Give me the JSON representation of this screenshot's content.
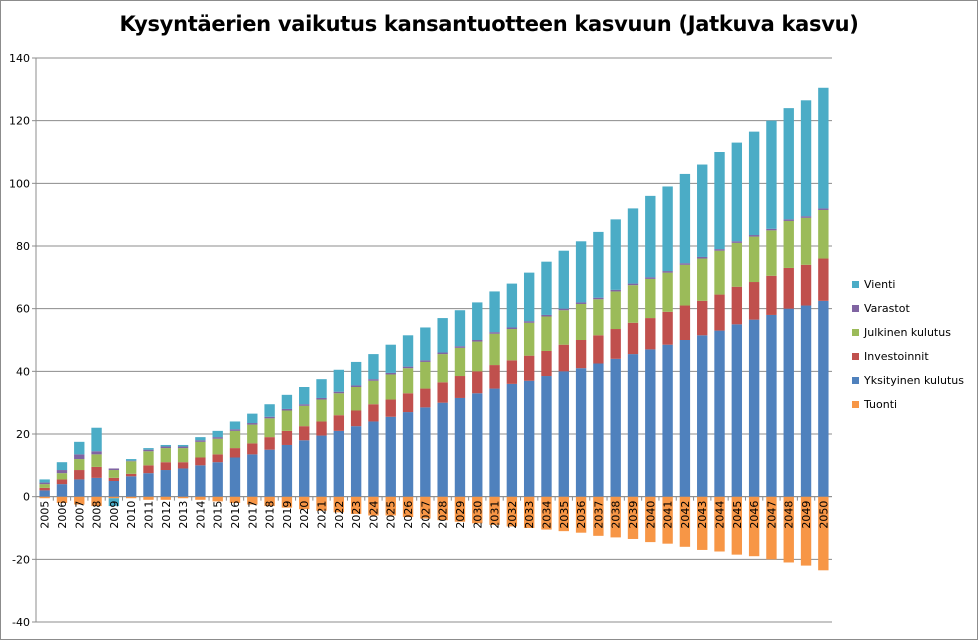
{
  "chart_data": {
    "type": "bar",
    "stacked": true,
    "title": "Kysyntäerien vaikutus kansantuotteen kasvuun (Jatkuva kasvu)",
    "xlabel": "",
    "ylabel": "",
    "ylim": [
      -40,
      140
    ],
    "yticks": [
      -40,
      -20,
      0,
      20,
      40,
      60,
      80,
      100,
      120,
      140
    ],
    "grid": true,
    "legend_position": "right",
    "categories": [
      "2005",
      "2006",
      "2007",
      "2008",
      "2009",
      "2010",
      "2011",
      "2012",
      "2013",
      "2014",
      "2015",
      "2016",
      "2017",
      "2018",
      "2019",
      "2020",
      "2021",
      "2022",
      "2023",
      "2024",
      "2025",
      "2026",
      "2027",
      "2028",
      "2029",
      "2030",
      "2031",
      "2032",
      "2033",
      "2034",
      "2035",
      "2036",
      "2037",
      "2038",
      "2039",
      "2040",
      "2041",
      "2042",
      "2043",
      "2044",
      "2045",
      "2046",
      "2047",
      "2048",
      "2049",
      "2050"
    ],
    "series": [
      {
        "name": "Tuonti",
        "color": "#f79646",
        "values": [
          -0.5,
          -2,
          -2.5,
          -3,
          -0.5,
          -0.5,
          -1,
          -1,
          -0.5,
          -1,
          -1.5,
          -2,
          -2.5,
          -3,
          -3.5,
          -4,
          -4.5,
          -5,
          -5.5,
          -6,
          -6,
          -6.5,
          -7,
          -7.5,
          -8,
          -8.5,
          -9,
          -9.5,
          -10,
          -10.5,
          -11,
          -11.5,
          -12.5,
          -13,
          -13.5,
          -14.5,
          -15,
          -16,
          -17,
          -17.5,
          -18.5,
          -19,
          -20,
          -21,
          -22,
          -23.5
        ]
      },
      {
        "name": "Yksityinen kulutus",
        "color": "#4f81bd",
        "values": [
          2,
          4,
          5.5,
          6,
          5,
          6.5,
          7.5,
          8.5,
          9,
          10,
          11,
          12.5,
          13.5,
          15,
          16.5,
          18,
          19.5,
          21,
          22.5,
          24,
          25.5,
          27,
          28.5,
          30,
          31.5,
          33,
          34.5,
          36,
          37,
          38.5,
          40,
          41,
          42.5,
          44,
          45.5,
          47,
          48.5,
          50,
          51.5,
          53,
          55,
          56.5,
          58,
          60,
          61,
          62.5
        ]
      },
      {
        "name": "Investoinnit",
        "color": "#c0504d",
        "values": [
          0.8,
          1.5,
          3,
          3.5,
          1,
          0.8,
          2.5,
          2.5,
          2,
          2.5,
          2.5,
          3,
          3.5,
          4,
          4.5,
          4.5,
          4.5,
          5,
          5,
          5.5,
          5.5,
          6,
          6,
          6.5,
          7,
          7,
          7.5,
          7.5,
          8,
          8,
          8.5,
          9,
          9,
          9.5,
          10,
          10,
          10.5,
          11,
          11,
          11.5,
          12,
          12,
          12.5,
          13,
          13,
          13.5
        ]
      },
      {
        "name": "Julkinen kulutus",
        "color": "#9bbb59",
        "values": [
          1.2,
          2,
          3.5,
          4,
          2.5,
          4,
          4.5,
          4.5,
          4.5,
          5,
          5,
          5.5,
          6,
          6,
          6.5,
          6.5,
          7,
          7,
          7.5,
          7.5,
          8,
          8,
          8.5,
          9,
          9,
          9.5,
          10,
          10,
          10.5,
          11,
          11,
          11.5,
          11.5,
          12,
          12,
          12.5,
          12.5,
          13,
          13.5,
          14,
          14,
          14.5,
          14.5,
          15,
          15,
          15.5
        ]
      },
      {
        "name": "Varastot",
        "color": "#8064a2",
        "values": [
          0.5,
          1,
          1.5,
          1,
          0.5,
          0.2,
          0.5,
          0.5,
          0.5,
          0.5,
          0.5,
          0.5,
          0.5,
          0.5,
          0.5,
          0.5,
          0.5,
          0.5,
          0.5,
          0.5,
          0.5,
          0.5,
          0.5,
          0.5,
          0.5,
          0.5,
          0.5,
          0.5,
          0.5,
          0.5,
          0.5,
          0.5,
          0.5,
          0.5,
          0.5,
          0.5,
          0.5,
          0.5,
          0.5,
          0.5,
          0.5,
          0.5,
          0.5,
          0.5,
          0.5,
          0.5
        ]
      },
      {
        "name": "Vienti",
        "color": "#4bacc6",
        "values": [
          1,
          2.5,
          4,
          7.5,
          -2.5,
          0.5,
          0.5,
          0.5,
          0.5,
          1,
          2,
          2.5,
          3,
          4,
          4.5,
          5.5,
          6,
          7,
          7.5,
          8,
          9,
          10,
          10.5,
          11,
          11.5,
          12,
          13,
          14,
          15.5,
          17,
          18.5,
          19.5,
          21,
          22.5,
          24,
          26,
          27,
          28.5,
          29.5,
          31,
          31.5,
          33,
          34.5,
          35.5,
          37,
          38.5
        ]
      }
    ]
  }
}
